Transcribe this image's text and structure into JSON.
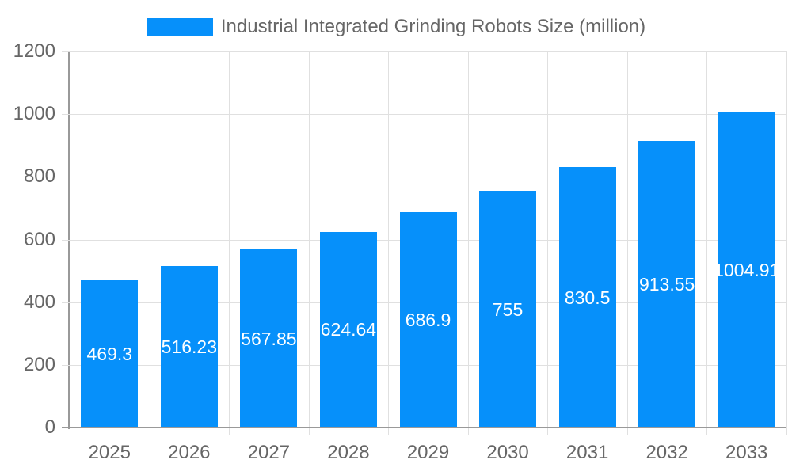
{
  "chart_data": {
    "type": "bar",
    "title": "Industrial Integrated Grinding Robots Size (million)",
    "legend": {
      "position": "top",
      "label": "Industrial Integrated Grinding Robots Size (million)"
    },
    "categories": [
      "2025",
      "2026",
      "2027",
      "2028",
      "2029",
      "2030",
      "2031",
      "2032",
      "2033"
    ],
    "values": [
      469.3,
      516.23,
      567.85,
      624.64,
      686.9,
      755,
      830.5,
      913.55,
      1004.91
    ],
    "value_labels": [
      "469.3",
      "516.23",
      "567.85",
      "624.64",
      "686.9",
      "755",
      "830.5",
      "913.55",
      "1004.91"
    ],
    "xlabel": "",
    "ylabel": "",
    "ylim": [
      0,
      1200
    ],
    "yticks": [
      0,
      200,
      400,
      600,
      800,
      1000,
      1200
    ],
    "grid": true,
    "colors": {
      "bar": "#0690FA",
      "grid": "#E0E0E0",
      "axis": "#999999",
      "tick_label": "#666666",
      "value_label": "#FFFFFF",
      "background": "#FFFFFF"
    }
  }
}
